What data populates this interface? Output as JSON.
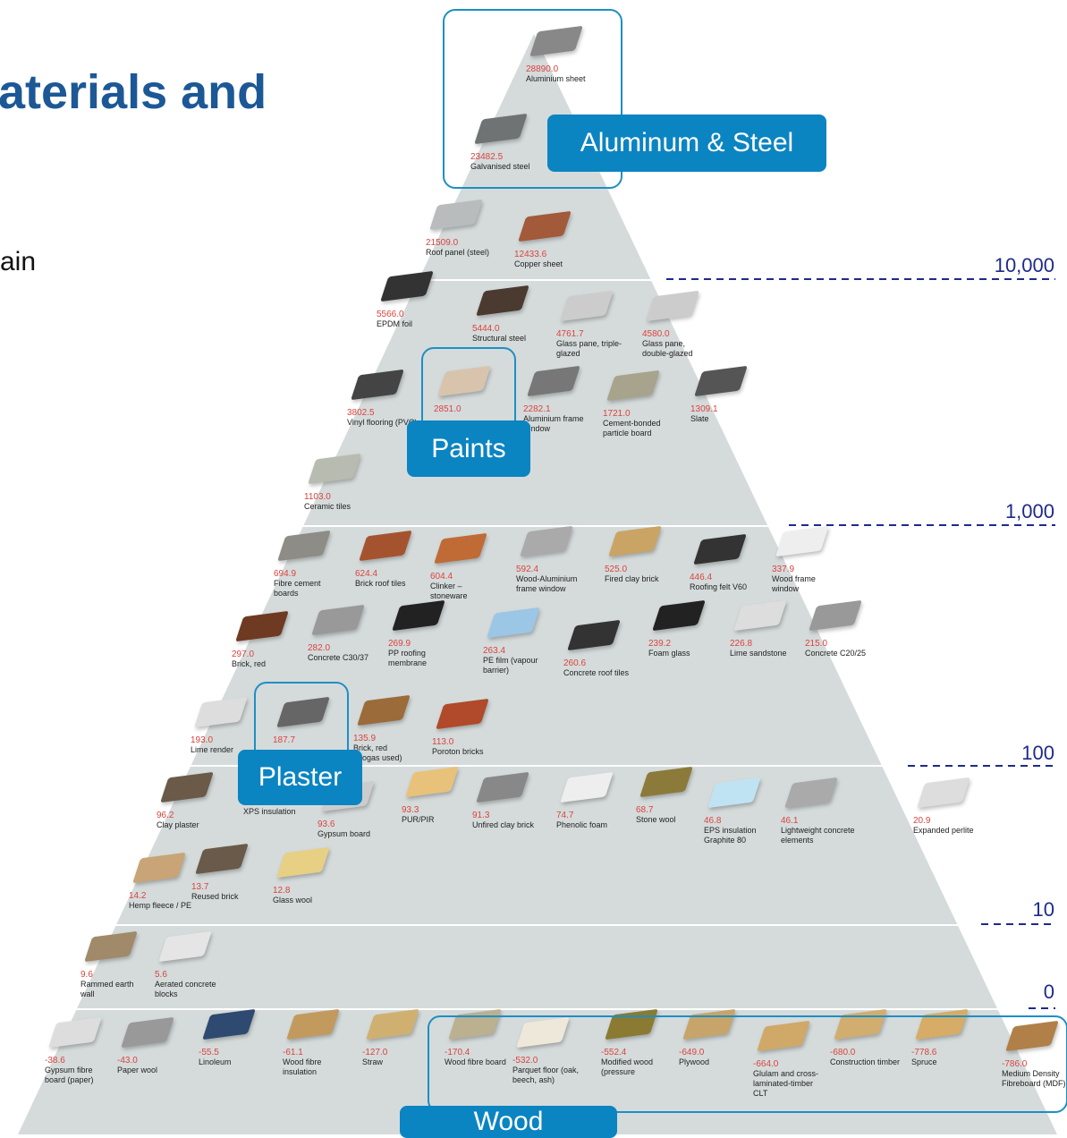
{
  "header": {
    "title": "aterials and",
    "subtitle": "ain"
  },
  "scale": [
    "10,000",
    "1,000",
    "100",
    "10",
    "0"
  ],
  "callouts": [
    "Aluminum & Steel",
    "Paints",
    "Plaster",
    "Wood"
  ],
  "materials": [
    {
      "value": "28890.0",
      "name": "Aluminium sheet"
    },
    {
      "value": "23482.5",
      "name": "Galvanised steel"
    },
    {
      "value": "21509.0",
      "name": "Roof panel (steel)"
    },
    {
      "value": "12433.6",
      "name": "Copper sheet"
    },
    {
      "value": "5566.0",
      "name": "EPDM foil"
    },
    {
      "value": "5444.0",
      "name": "Structural steel"
    },
    {
      "value": "4761.7",
      "name": "Glass pane, triple-glazed"
    },
    {
      "value": "4580.0",
      "name": "Glass pane, double-glazed"
    },
    {
      "value": "3802.5",
      "name": "Vinyl flooring (PVC)"
    },
    {
      "value": "2851.0"
    },
    {
      "value": "2282.1",
      "name": "Aluminium frame window"
    },
    {
      "value": "1721.0",
      "name": "Cement-bonded particle board"
    },
    {
      "value": "1309.1",
      "name": "Slate"
    },
    {
      "value": "1103.0",
      "name": "Ceramic tiles"
    },
    {
      "value": "694.9",
      "name": "Fibre cement boards"
    },
    {
      "value": "624.4",
      "name": "Brick roof tiles"
    },
    {
      "value": "604.4",
      "name": "Clinker – stoneware"
    },
    {
      "value": "592.4",
      "name": "Wood-Aluminium frame window"
    },
    {
      "value": "525.0",
      "name": "Fired clay brick"
    },
    {
      "value": "446.4",
      "name": "Roofing felt V60"
    },
    {
      "value": "337.9",
      "name": "Wood frame window"
    },
    {
      "value": "297.0",
      "name": "Brick, red"
    },
    {
      "value": "282.0",
      "name": "Concrete C30/37"
    },
    {
      "value": "269.9",
      "name": "PP roofing membrane"
    },
    {
      "value": "263.4",
      "name": "PE film (vapour barrier)"
    },
    {
      "value": "260.6",
      "name": "Concrete roof tiles"
    },
    {
      "value": "239.2",
      "name": "Foam glass"
    },
    {
      "value": "226.8",
      "name": "Lime sandstone"
    },
    {
      "value": "215.0",
      "name": "Concrete C20/25"
    },
    {
      "value": "193.0",
      "name": "Lime render"
    },
    {
      "value": "187.7"
    },
    {
      "value": "135.9",
      "name": "Brick, red (biogas used)"
    },
    {
      "value": "113.0",
      "name": "Poroton bricks"
    },
    {
      "value": "96.2",
      "name": "Clay plaster"
    },
    {
      "name": "XPS insulation"
    },
    {
      "value": "93.6",
      "name": "Gypsum board"
    },
    {
      "value": "93.3",
      "name": "PUR/PIR"
    },
    {
      "value": "91.3",
      "name": "Unfired clay brick"
    },
    {
      "value": "74.7",
      "name": "Phenolic foam"
    },
    {
      "value": "68.7",
      "name": "Stone wool"
    },
    {
      "value": "46.8",
      "name": "EPS insulation Graphite 80"
    },
    {
      "value": "46.1",
      "name": "Lightweight concrete elements"
    },
    {
      "value": "20.9",
      "name": "Expanded perlite"
    },
    {
      "value": "14.2",
      "name": "Hemp fleece / PE"
    },
    {
      "value": "13.7",
      "name": "Reused brick"
    },
    {
      "value": "12.8",
      "name": "Glass wool"
    },
    {
      "value": "9.6",
      "name": "Rammed earth wall"
    },
    {
      "value": "5.6",
      "name": "Aerated concrete blocks"
    },
    {
      "value": "-38.6",
      "name": "Gypsum fibre board (paper)"
    },
    {
      "value": "-43.0",
      "name": "Paper wool"
    },
    {
      "value": "-55.5",
      "name": "Linoleum"
    },
    {
      "value": "-61.1",
      "name": "Wood fibre insulation"
    },
    {
      "value": "-127.0",
      "name": "Straw"
    },
    {
      "value": "-170.4",
      "name": "Wood fibre board"
    },
    {
      "value": "-532.0",
      "name": "Parquet floor (oak, beech, ash)"
    },
    {
      "value": "-552.4",
      "name": "Modified wood (pressure"
    },
    {
      "value": "-649.0",
      "name": "Plywood"
    },
    {
      "value": "-664.0",
      "name": "Glulam and cross-laminated-timber CLT"
    },
    {
      "value": "-680.0",
      "name": "Construction timber"
    },
    {
      "value": "-778.6",
      "name": "Spruce"
    },
    {
      "value": "-786.0",
      "name": "Medium Density Fibreboard (MDF)"
    }
  ]
}
